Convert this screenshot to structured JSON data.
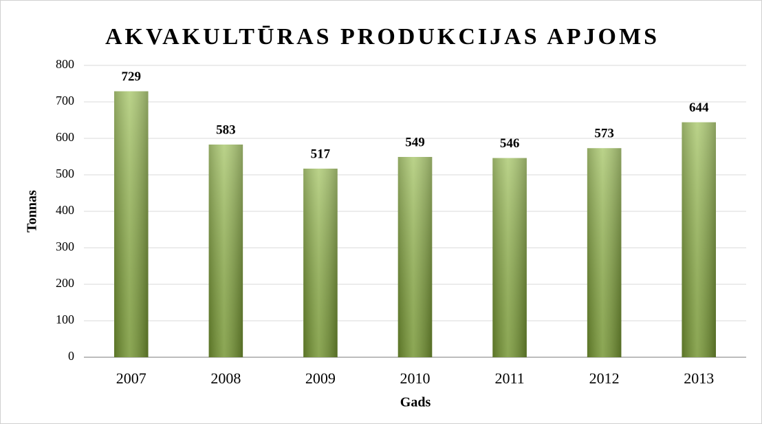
{
  "chart_data": {
    "type": "bar",
    "title": "AKVAKULTŪRAS PRODUKCIJAS APJOMS",
    "x_label": "Gads",
    "y_label": "Tonnas",
    "categories": [
      "2007",
      "2008",
      "2009",
      "2010",
      "2011",
      "2012",
      "2013"
    ],
    "values": [
      729,
      583,
      517,
      549,
      546,
      573,
      644
    ],
    "color": "#8db53c",
    "ylim": [
      0,
      800
    ],
    "yticks": [
      0,
      100,
      200,
      300,
      400,
      500,
      600,
      700,
      800
    ],
    "grid": true
  }
}
